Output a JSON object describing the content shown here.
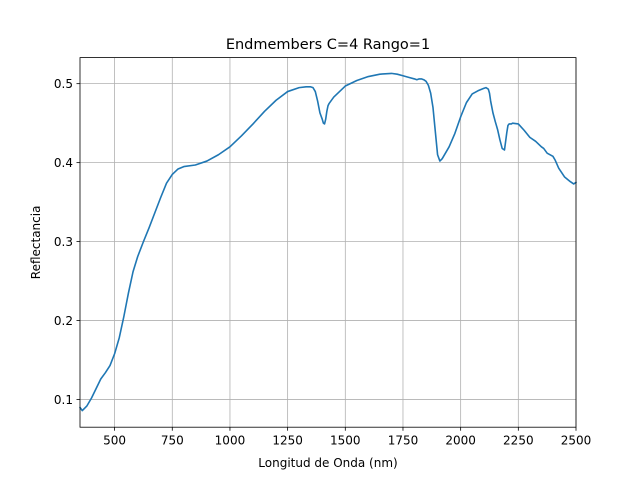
{
  "chart_data": {
    "type": "line",
    "title": "Endmembers C=4 Rango=1",
    "xlabel": "Longitud de Onda (nm)",
    "ylabel": "Reflectancia",
    "xlim": [
      350,
      2500
    ],
    "ylim": [
      0.065,
      0.533
    ],
    "grid": true,
    "x_ticks": [
      500,
      750,
      1000,
      1250,
      1500,
      1750,
      2000,
      2250,
      2500
    ],
    "x_tick_labels": [
      "500",
      "750",
      "1000",
      "1250",
      "1500",
      "1750",
      "2000",
      "2250",
      "2500"
    ],
    "y_ticks": [
      0.1,
      0.2,
      0.3,
      0.4,
      0.5
    ],
    "y_tick_labels": [
      "0.1",
      "0.2",
      "0.3",
      "0.4",
      "0.5"
    ],
    "series": [
      {
        "color": "#1f77b4",
        "x": [
          350,
          360,
          380,
          400,
          420,
          440,
          460,
          480,
          500,
          520,
          540,
          560,
          580,
          600,
          625,
          650,
          675,
          700,
          725,
          750,
          775,
          800,
          850,
          900,
          950,
          1000,
          1050,
          1100,
          1150,
          1200,
          1250,
          1300,
          1330,
          1350,
          1360,
          1370,
          1380,
          1390,
          1400,
          1405,
          1410,
          1415,
          1420,
          1425,
          1430,
          1450,
          1475,
          1500,
          1550,
          1600,
          1650,
          1700,
          1725,
          1750,
          1775,
          1800,
          1810,
          1820,
          1830,
          1840,
          1850,
          1860,
          1870,
          1880,
          1890,
          1900,
          1910,
          1920,
          1950,
          1975,
          2000,
          2025,
          2050,
          2075,
          2100,
          2110,
          2120,
          2125,
          2130,
          2140,
          2150,
          2160,
          2170,
          2180,
          2190,
          2200,
          2205,
          2210,
          2215,
          2220,
          2225,
          2250,
          2275,
          2300,
          2325,
          2350,
          2360,
          2375,
          2400,
          2410,
          2425,
          2450,
          2475,
          2490,
          2500
        ],
        "y": [
          0.09,
          0.086,
          0.092,
          0.102,
          0.114,
          0.126,
          0.134,
          0.143,
          0.158,
          0.178,
          0.205,
          0.235,
          0.262,
          0.281,
          0.3,
          0.318,
          0.337,
          0.356,
          0.374,
          0.385,
          0.392,
          0.395,
          0.397,
          0.402,
          0.41,
          0.42,
          0.434,
          0.449,
          0.465,
          0.479,
          0.49,
          0.495,
          0.496,
          0.496,
          0.495,
          0.49,
          0.478,
          0.463,
          0.455,
          0.45,
          0.449,
          0.455,
          0.465,
          0.472,
          0.475,
          0.483,
          0.49,
          0.497,
          0.504,
          0.509,
          0.512,
          0.513,
          0.512,
          0.51,
          0.508,
          0.506,
          0.505,
          0.506,
          0.506,
          0.505,
          0.503,
          0.498,
          0.488,
          0.47,
          0.44,
          0.41,
          0.402,
          0.405,
          0.42,
          0.437,
          0.458,
          0.476,
          0.487,
          0.491,
          0.494,
          0.495,
          0.493,
          0.488,
          0.478,
          0.463,
          0.452,
          0.442,
          0.429,
          0.418,
          0.416,
          0.438,
          0.447,
          0.449,
          0.449,
          0.449,
          0.45,
          0.449,
          0.441,
          0.432,
          0.427,
          0.42,
          0.418,
          0.412,
          0.408,
          0.403,
          0.393,
          0.382,
          0.376,
          0.373,
          0.375
        ]
      }
    ]
  }
}
